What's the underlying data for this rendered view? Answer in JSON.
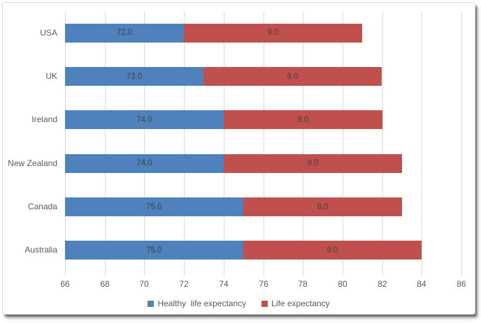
{
  "chart_data": {
    "type": "bar",
    "orientation": "horizontal",
    "stacked": true,
    "title": "",
    "xlabel": "",
    "ylabel": "",
    "categories": [
      "USA",
      "UK",
      "Ireland",
      "New Zealand",
      "Canada",
      "Australia"
    ],
    "series": [
      {
        "name": "Healthy  life expectancy",
        "color": "#4f81bd",
        "values": [
          72,
          73,
          74,
          74,
          75,
          75
        ],
        "labels": [
          "72.0",
          "73.0",
          "74.0",
          "74.0",
          "75.0",
          "75.0"
        ]
      },
      {
        "name": "Life expectancy",
        "color": "#c0504d",
        "values": [
          9,
          9,
          8,
          9,
          8,
          9
        ],
        "labels": [
          "9.0",
          "9.0",
          "8.0",
          "9.0",
          "8.0",
          "9.0"
        ]
      }
    ],
    "bar_totals": [
      81,
      82,
      82,
      83,
      83,
      84
    ],
    "xlim": [
      66,
      86
    ],
    "xticks": [
      66,
      68,
      70,
      72,
      74,
      76,
      78,
      80,
      82,
      84,
      86
    ],
    "grid": true,
    "legend_position": "bottom"
  },
  "colors": {
    "gridline": "#d9d9d9",
    "frame_border": "#d9d9d9",
    "axis_text": "#595959",
    "data_label_text": "#404040",
    "series_blue": "#4f81bd",
    "series_red": "#c0504d",
    "background": "#ffffff"
  }
}
